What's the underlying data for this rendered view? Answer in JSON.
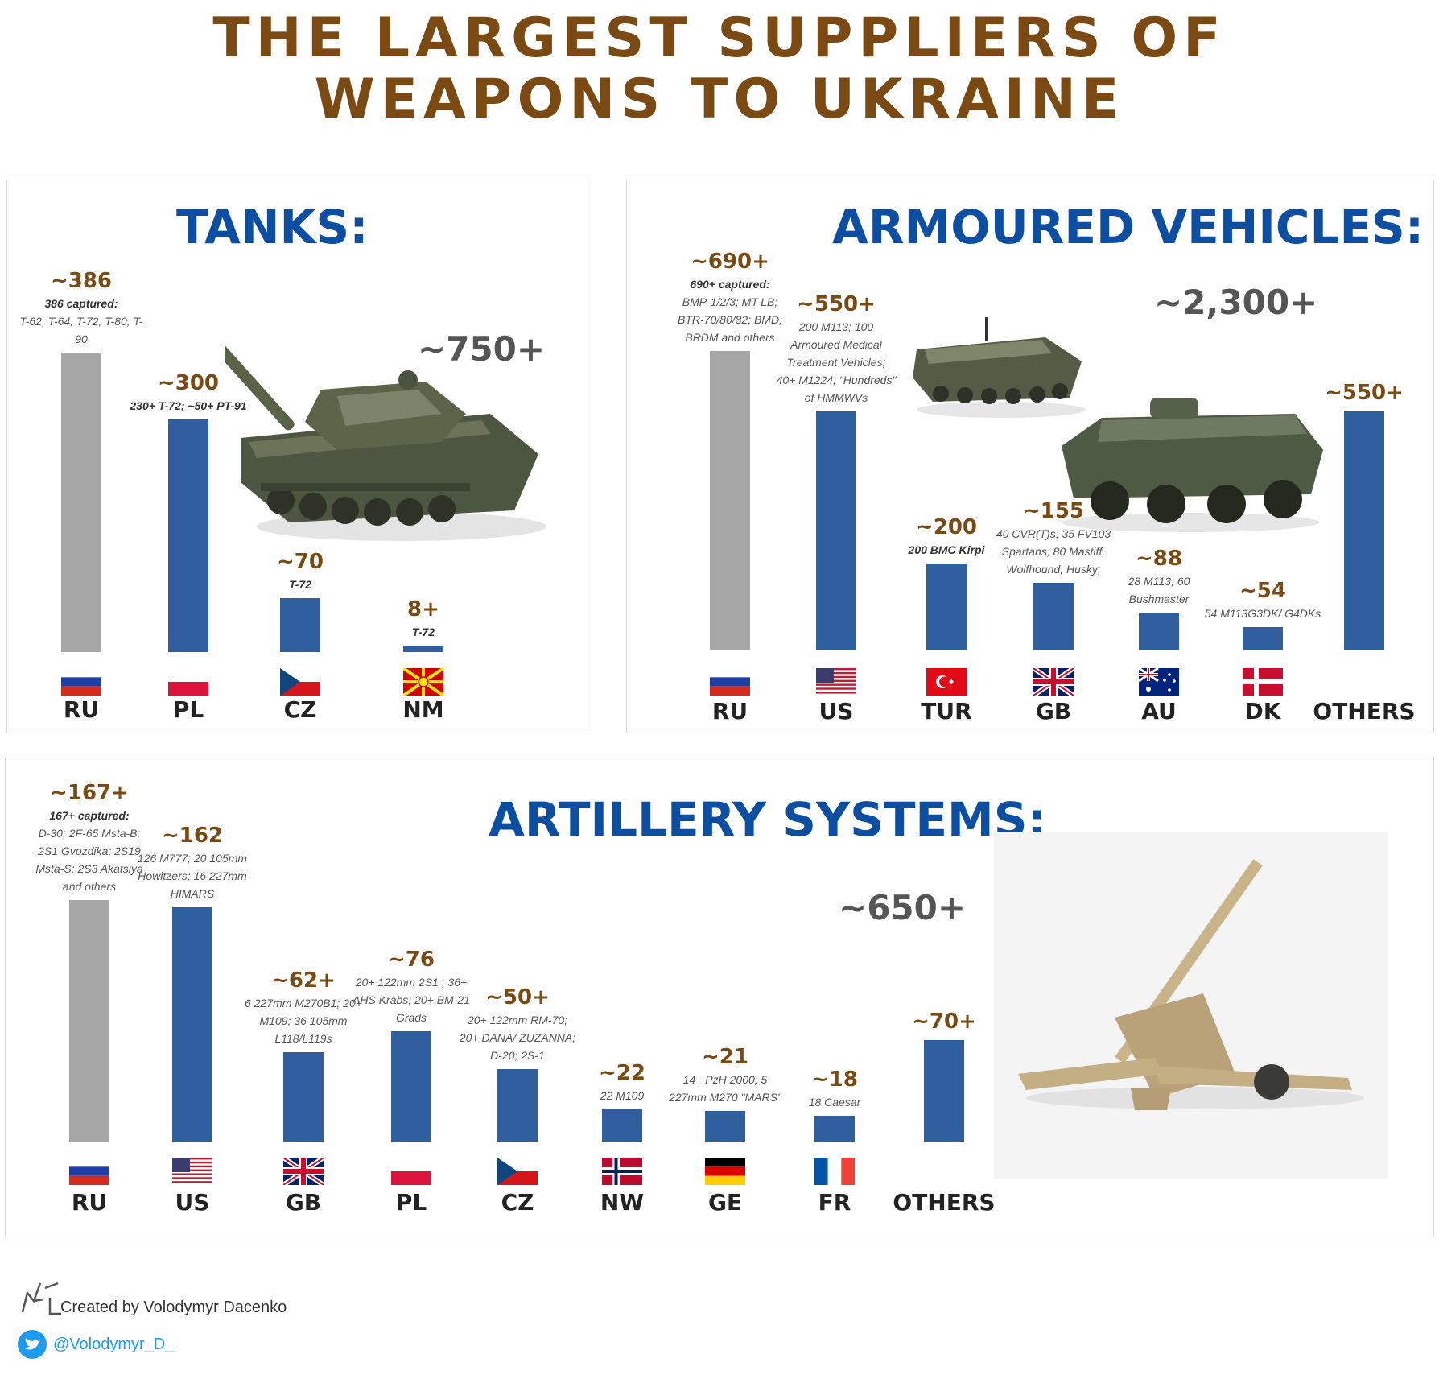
{
  "title_line1": "THE LARGEST SUPPLIERS OF",
  "title_line2": "WEAPONS TO UKRAINE",
  "chart_data": [
    {
      "type": "bar",
      "title": "TANKS:",
      "total_label": "~750+",
      "categories": [
        "RU",
        "PL",
        "CZ",
        "NM"
      ],
      "values": [
        386,
        300,
        70,
        8
      ],
      "value_labels": [
        "~386",
        "~300",
        "~70",
        "8+"
      ],
      "notes": [
        {
          "bold": "386 captured:",
          "text": "T-62, T-64, T-72, T-80, T-90"
        },
        {
          "bold": "230+ T-72; ~50+ PT-91",
          "text": ""
        },
        {
          "bold": "T-72",
          "text": ""
        },
        {
          "bold": "T-72",
          "text": ""
        }
      ],
      "bar_colors": [
        "#a6a6a6",
        "#2f5f9f",
        "#2f5f9f",
        "#2f5f9f"
      ]
    },
    {
      "type": "bar",
      "title": "ARMOURED VEHICLES:",
      "total_label": "~2,300+",
      "categories": [
        "RU",
        "US",
        "TUR",
        "GB",
        "AU",
        "DK",
        "OTHERS"
      ],
      "values": [
        690,
        550,
        200,
        155,
        88,
        54,
        550
      ],
      "value_labels": [
        "~690+",
        "~550+",
        "~200",
        "~155",
        "~88",
        "~54",
        "~550+"
      ],
      "notes": [
        {
          "bold": "690+ captured:",
          "text": "BMP-1/2/3; MT-LB; BTR-70/80/82; BMD; BRDM and others"
        },
        {
          "bold": "",
          "text": "200 M113; 100 Armoured Medical Treatment Vehicles; 40+ M1224; \"Hundreds\" of HMMWVs"
        },
        {
          "bold": "200 BMC Kirpi",
          "text": ""
        },
        {
          "bold": "",
          "text": "40 CVR(T)s; 35 FV103 Spartans; 80 Mastiff, Wolfhound, Husky;"
        },
        {
          "bold": "",
          "text": "28 M113; 60 Bushmaster"
        },
        {
          "bold": "",
          "text": "54 M113G3DK/ G4DKs"
        },
        {
          "bold": "",
          "text": ""
        }
      ],
      "bar_colors": [
        "#a6a6a6",
        "#2f5f9f",
        "#2f5f9f",
        "#2f5f9f",
        "#2f5f9f",
        "#2f5f9f",
        "#2f5f9f"
      ]
    },
    {
      "type": "bar",
      "title": "ARTILLERY SYSTEMS:",
      "total_label": "~650+",
      "categories": [
        "RU",
        "US",
        "GB",
        "PL",
        "CZ",
        "NW",
        "GE",
        "FR",
        "OTHERS"
      ],
      "values": [
        167,
        162,
        62,
        76,
        50,
        22,
        21,
        18,
        70
      ],
      "value_labels": [
        "~167+",
        "~162",
        "~62+",
        "~76",
        "~50+",
        "~22",
        "~21",
        "~18",
        "~70+"
      ],
      "notes": [
        {
          "bold": "167+ captured:",
          "text": "D-30; 2F-65 Msta-B; 2S1 Gvozdika; 2S19 Msta-S; 2S3 Akatsiya and others"
        },
        {
          "bold": "",
          "text": "126 M777; 20 105mm Howitzers; 16 227mm HIMARS"
        },
        {
          "bold": "",
          "text": "6 227mm M270B1; 20+ M109; 36 105mm L118/L119s"
        },
        {
          "bold": "",
          "text": "20+ 122mm 2S1 ; 36+ AHS Krabs; 20+ BM-21 Grads"
        },
        {
          "bold": "",
          "text": "20+ 122mm RM-70; 20+ DANA/ ZUZANNA; D-20; 2S-1"
        },
        {
          "bold": "",
          "text": "22 M109"
        },
        {
          "bold": "",
          "text": "14+ PzH 2000; 5 227mm M270 \"MARS\""
        },
        {
          "bold": "",
          "text": "18 Caesar"
        },
        {
          "bold": "",
          "text": ""
        }
      ],
      "bar_colors": [
        "#a6a6a6",
        "#2f5f9f",
        "#2f5f9f",
        "#2f5f9f",
        "#2f5f9f",
        "#2f5f9f",
        "#2f5f9f",
        "#2f5f9f",
        "#2f5f9f"
      ]
    }
  ],
  "footer": {
    "credit": "Created by Volodymyr Dacenko",
    "handle": "@Volodymyr_D_",
    "icons": [
      "signature-logo",
      "twitter-bird-icon"
    ]
  }
}
